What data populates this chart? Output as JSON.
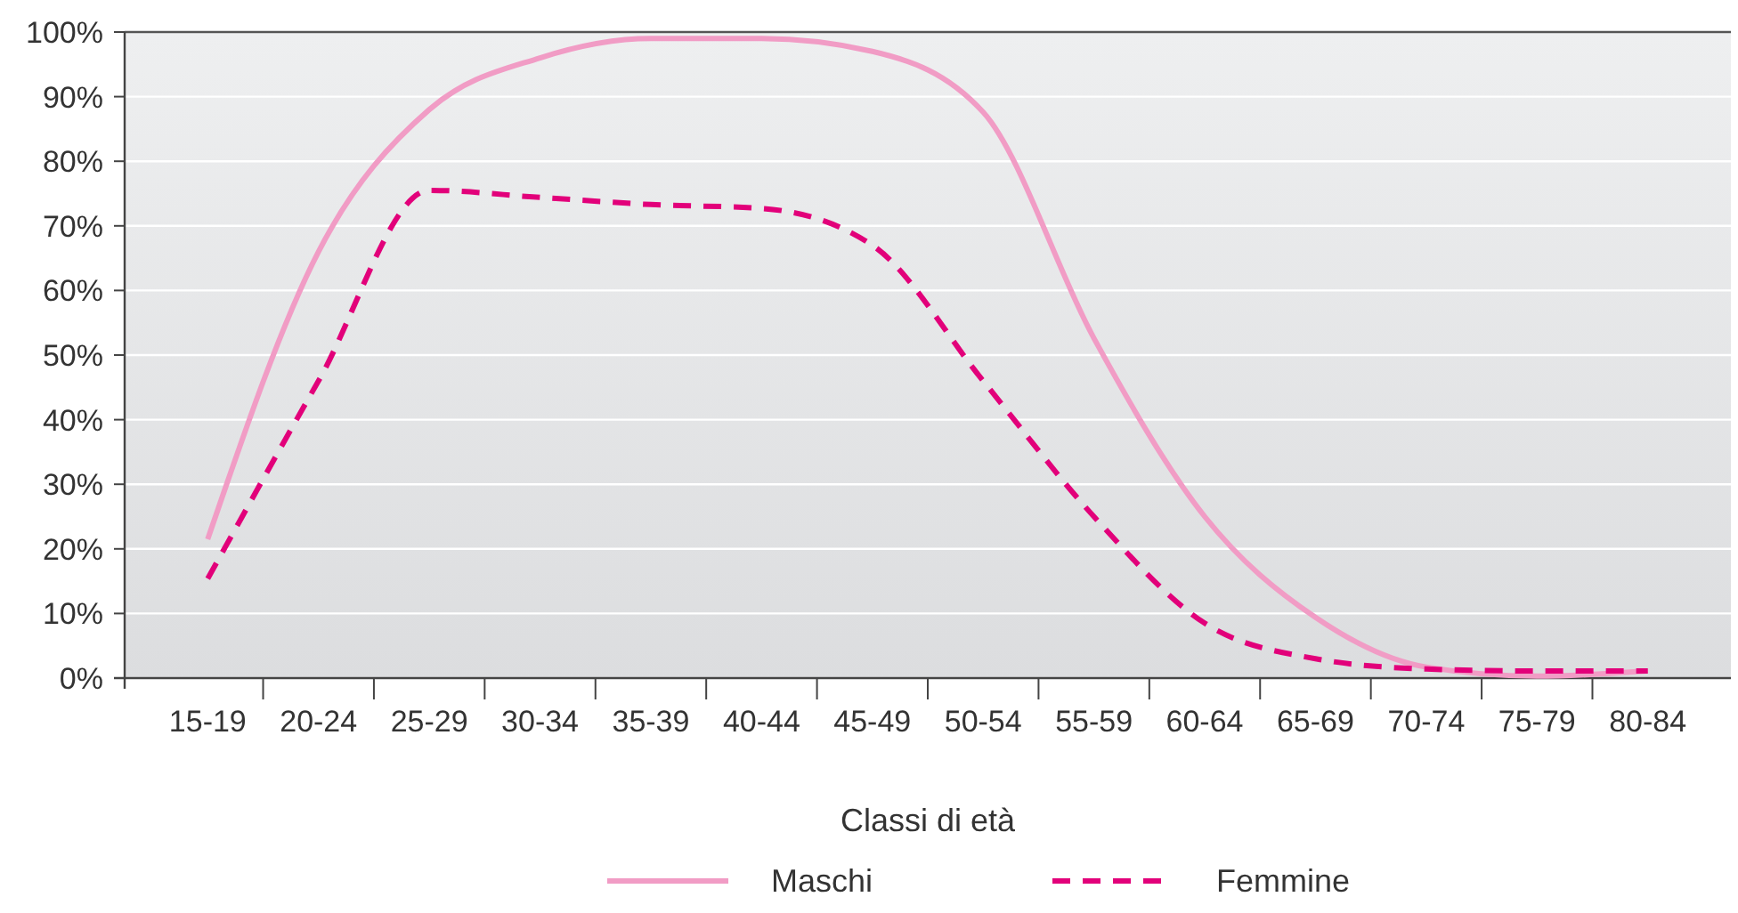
{
  "chart_data": {
    "type": "line",
    "xlabel": "Classi di età",
    "categories": [
      "15-19",
      "20-24",
      "25-29",
      "30-34",
      "35-39",
      "40-44",
      "45-49",
      "50-54",
      "55-59",
      "60-64",
      "65-69",
      "70-74",
      "75-79",
      "80-84"
    ],
    "ylim": [
      0,
      100
    ],
    "yticks": [
      {
        "value": 0,
        "label": "0%"
      },
      {
        "value": 10,
        "label": "10%"
      },
      {
        "value": 20,
        "label": "20%"
      },
      {
        "value": 30,
        "label": "30%"
      },
      {
        "value": 40,
        "label": "40%"
      },
      {
        "value": 50,
        "label": "50%"
      },
      {
        "value": 60,
        "label": "60%"
      },
      {
        "value": 70,
        "label": "70%"
      },
      {
        "value": 80,
        "label": "80%"
      },
      {
        "value": 90,
        "label": "90%"
      },
      {
        "value": 100,
        "label": "100%"
      }
    ],
    "grid": "y",
    "legend": "bottom",
    "marker": "none",
    "series": [
      {
        "name": "Maschi",
        "color": "#f19cc5",
        "line_style": "solid",
        "values": [
          21.5,
          66,
          88,
          96,
          99,
          99,
          97,
          87.6,
          52.6,
          25,
          9.4,
          1.7,
          0.3,
          1.1
        ]
      },
      {
        "name": "Femmine",
        "color": "#e2007a",
        "line_style": "dashed",
        "values": [
          15.4,
          46,
          75.5,
          74.4,
          73.3,
          72.7,
          67,
          46,
          25,
          8.5,
          3,
          1.4,
          1.1,
          1.1
        ]
      }
    ]
  }
}
